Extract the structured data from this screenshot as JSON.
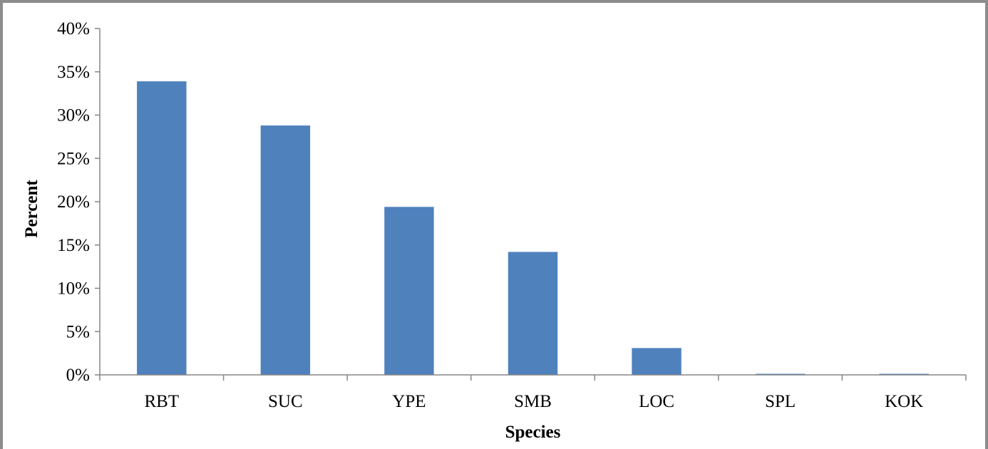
{
  "chart_data": {
    "type": "bar",
    "categories": [
      "RBT",
      "SUC",
      "YPE",
      "SMB",
      "LOC",
      "SPL",
      "KOK"
    ],
    "values": [
      0.339,
      0.288,
      0.194,
      0.142,
      0.031,
      0.001,
      0.001
    ],
    "title": "",
    "xlabel": "Species",
    "ylabel": "Percent",
    "ylim": [
      0,
      0.4
    ],
    "yticks": [
      0,
      0.05,
      0.1,
      0.15,
      0.2,
      0.25,
      0.3,
      0.35,
      0.4
    ],
    "ytick_labels": [
      "0%",
      "5%",
      "10%",
      "15%",
      "20%",
      "25%",
      "30%",
      "35%",
      "40%"
    ],
    "grid": false,
    "legend": "none",
    "colors": {
      "bar": "#4f81bd",
      "axis": "#868686",
      "frame": "#8c8c8c"
    }
  }
}
